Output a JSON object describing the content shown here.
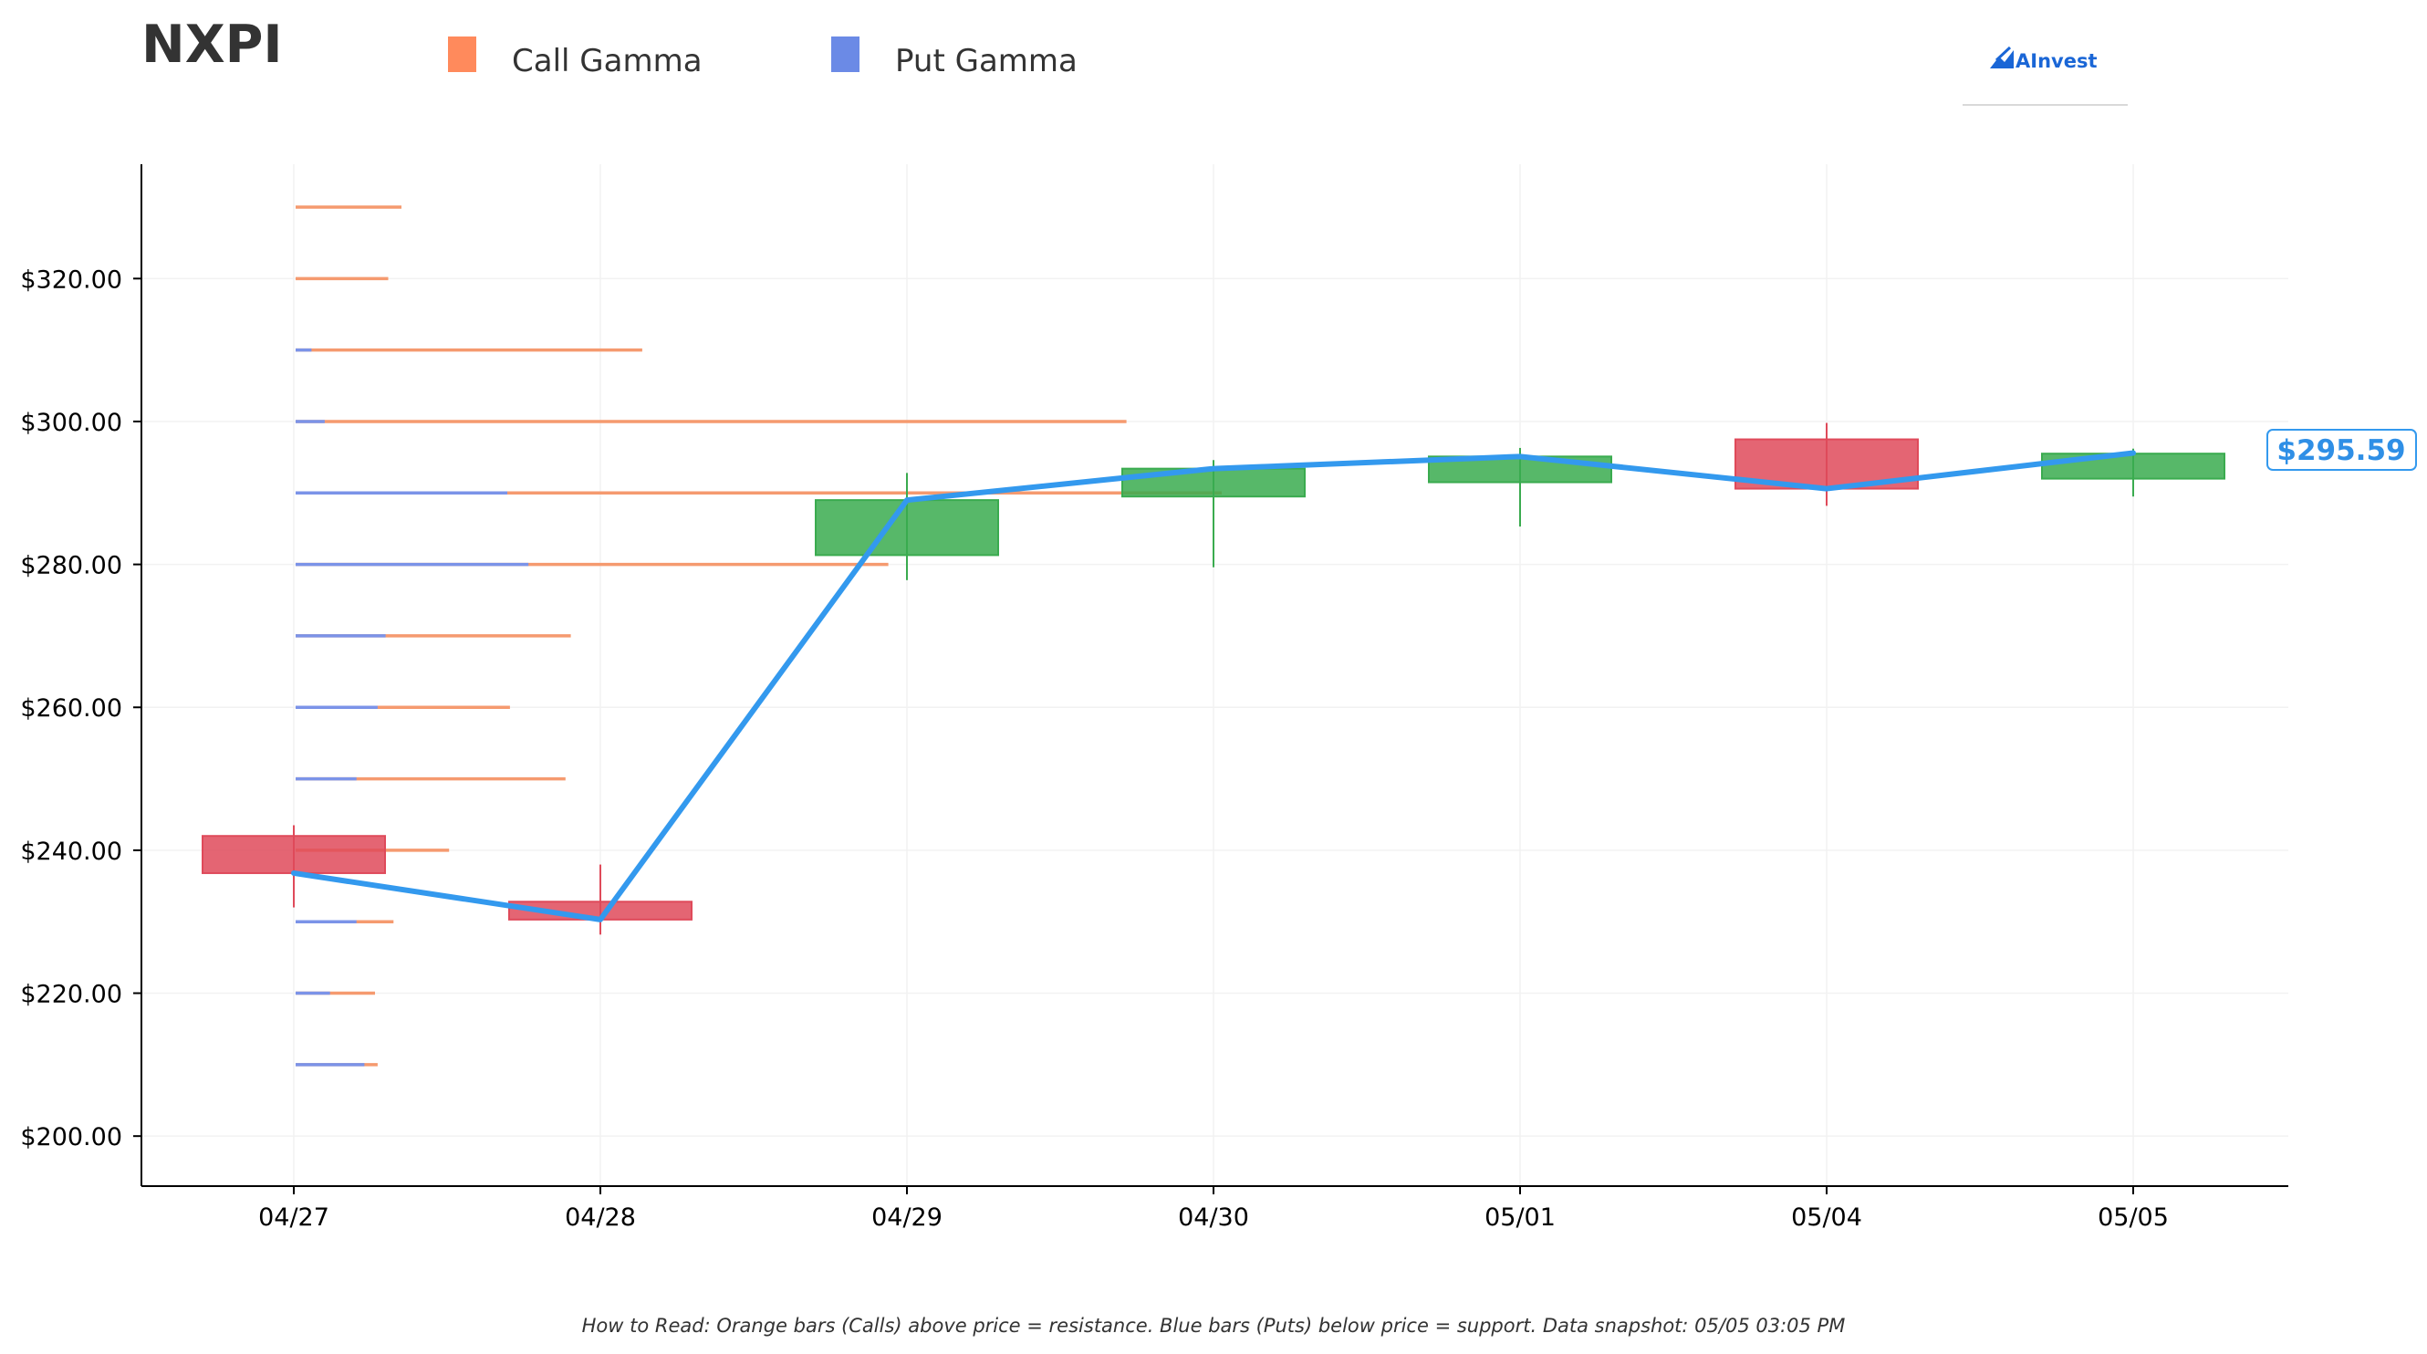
{
  "ticker": "NXPI",
  "legend": [
    {
      "label": "Call Gamma",
      "color": "#ff8a5c"
    },
    {
      "label": "Put Gamma",
      "color": "#6b8ae6"
    }
  ],
  "logo_text": "AInvest",
  "footnote": "How to Read: Orange bars (Calls) above price = resistance. Blue bars (Puts) below price = support. Data snapshot: 05/05 03:05 PM",
  "current_price_label": "$295.59",
  "colors": {
    "call": "#f59a6f",
    "put": "#7b93e8",
    "up": "#3aab4f",
    "down": "#df4a5a",
    "price_line": "#3399ee"
  },
  "chart_data": {
    "type": "candlestick",
    "dates": [
      "04/27",
      "04/28",
      "04/29",
      "04/30",
      "05/01",
      "05/04",
      "05/05"
    ],
    "candles": [
      {
        "date": "04/27",
        "open": 242.0,
        "high": 243.5,
        "low": 232.0,
        "close": 236.8
      },
      {
        "date": "04/28",
        "open": 232.8,
        "high": 238.0,
        "low": 228.2,
        "close": 230.3
      },
      {
        "date": "04/29",
        "open": 281.3,
        "high": 292.8,
        "low": 277.8,
        "close": 289.0
      },
      {
        "date": "04/30",
        "open": 289.5,
        "high": 294.6,
        "low": 279.6,
        "close": 293.4
      },
      {
        "date": "05/01",
        "open": 291.5,
        "high": 296.3,
        "low": 285.3,
        "close": 295.1
      },
      {
        "date": "05/04",
        "open": 297.5,
        "high": 299.8,
        "low": 288.2,
        "close": 290.6
      },
      {
        "date": "05/05",
        "open": 292.0,
        "high": 296.2,
        "low": 289.5,
        "close": 295.5
      }
    ],
    "price_line": [
      236.8,
      230.3,
      289.0,
      293.4,
      295.1,
      290.6,
      295.59
    ],
    "gamma_levels": [
      {
        "strike": 330,
        "call": 2.0,
        "put": 0.0
      },
      {
        "strike": 320,
        "call": 1.75,
        "put": 0.0
      },
      {
        "strike": 310,
        "call": 6.55,
        "put": 0.3
      },
      {
        "strike": 300,
        "call": 15.7,
        "put": 0.55
      },
      {
        "strike": 290,
        "call": 17.5,
        "put": 4.0
      },
      {
        "strike": 280,
        "call": 11.2,
        "put": 4.4
      },
      {
        "strike": 270,
        "call": 5.2,
        "put": 1.7
      },
      {
        "strike": 260,
        "call": 4.05,
        "put": 1.55
      },
      {
        "strike": 250,
        "call": 5.1,
        "put": 1.15
      },
      {
        "strike": 240,
        "call": 2.9,
        "put": 0.0
      },
      {
        "strike": 230,
        "call": 1.85,
        "put": 1.15
      },
      {
        "strike": 220,
        "call": 1.5,
        "put": 0.65
      },
      {
        "strike": 210,
        "call": 1.55,
        "put": 1.3
      }
    ],
    "y_ticks": [
      "$200.00",
      "$220.00",
      "$240.00",
      "$260.00",
      "$280.00",
      "$300.00",
      "$320.00"
    ],
    "y_tick_values": [
      200,
      220,
      240,
      260,
      280,
      300,
      320
    ],
    "ylim": [
      193,
      336
    ],
    "grid": true
  }
}
